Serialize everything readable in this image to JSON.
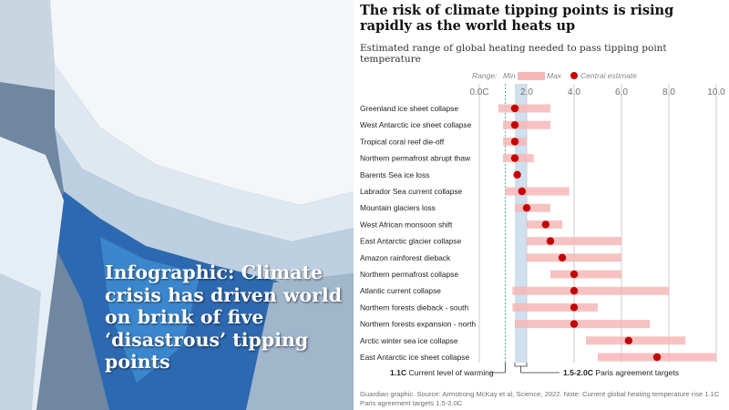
{
  "headline": "Infographic: Climate crisis has driven world on brink of five ‘disastrous’ tipping points",
  "chart_data": {
    "type": "range",
    "title": "The risk of climate tipping points is rising rapidly as the world heats up",
    "subtitle": "Estimated range of global heating needed to pass tipping point temperature",
    "x_ticks": [
      "0.0C",
      "2.0",
      "4.0",
      "6.0",
      "8.0",
      "10.0"
    ],
    "x_tick_values": [
      0,
      2,
      4,
      6,
      8,
      10
    ],
    "xlim": [
      0,
      10
    ],
    "legend": {
      "range_label": "Range:",
      "min_label": "Min",
      "max_label": "Max",
      "central_label": "Central estimate"
    },
    "series": [
      {
        "name": "Greenland ice sheet collapse",
        "min": 0.8,
        "max": 3.0,
        "central": 1.5
      },
      {
        "name": "West Antarctic ice sheet collapse",
        "min": 1.0,
        "max": 3.0,
        "central": 1.5
      },
      {
        "name": "Tropical coral reef die-off",
        "min": 1.0,
        "max": 2.0,
        "central": 1.5
      },
      {
        "name": "Northern permafrost abrupt thaw",
        "min": 1.0,
        "max": 2.3,
        "central": 1.5
      },
      {
        "name": "Barents Sea ice loss",
        "min": 1.5,
        "max": 1.7,
        "central": 1.6
      },
      {
        "name": "Labrador Sea current collapse",
        "min": 1.1,
        "max": 3.8,
        "central": 1.8
      },
      {
        "name": "Mountain glaciers loss",
        "min": 1.5,
        "max": 3.0,
        "central": 2.0
      },
      {
        "name": "West African monsoon shift",
        "min": 2.0,
        "max": 3.5,
        "central": 2.8
      },
      {
        "name": "East Antarctic glacier collapse",
        "min": 2.0,
        "max": 6.0,
        "central": 3.0
      },
      {
        "name": "Amazon rainforest dieback",
        "min": 2.0,
        "max": 6.0,
        "central": 3.5
      },
      {
        "name": "Northern permafrost collapse",
        "min": 3.0,
        "max": 6.0,
        "central": 4.0
      },
      {
        "name": "Atlantic current collapse",
        "min": 1.4,
        "max": 8.0,
        "central": 4.0
      },
      {
        "name": "Northern forests dieback - south",
        "min": 1.4,
        "max": 5.0,
        "central": 4.0
      },
      {
        "name": "Northern forests expansion - north",
        "min": 1.5,
        "max": 7.2,
        "central": 4.0
      },
      {
        "name": "Arctic winter sea ice collapse",
        "min": 4.5,
        "max": 8.7,
        "central": 6.3
      },
      {
        "name": "East Antarctic ice sheet collapse",
        "min": 5.0,
        "max": 10.0,
        "central": 7.5
      }
    ],
    "current_warming": {
      "value": 1.1,
      "label_value": "1.1C",
      "label_text": "Current level of warming"
    },
    "paris_band": {
      "min": 1.5,
      "max": 2.0,
      "label_value": "1.5-2.0C",
      "label_text": "Paris agreement targets"
    },
    "footnote": "Guardian graphic. Source: Armstrong McKay et al, Science, 2022. Note: Current global heating temperature rise 1.1C Paris agreement targets 1.5-2.0C",
    "colors": {
      "range": "#f7b7b7",
      "central": "#c70000",
      "paris": "#cfe0ee",
      "current": "#49a9a0",
      "grid": "#cccccc"
    }
  }
}
